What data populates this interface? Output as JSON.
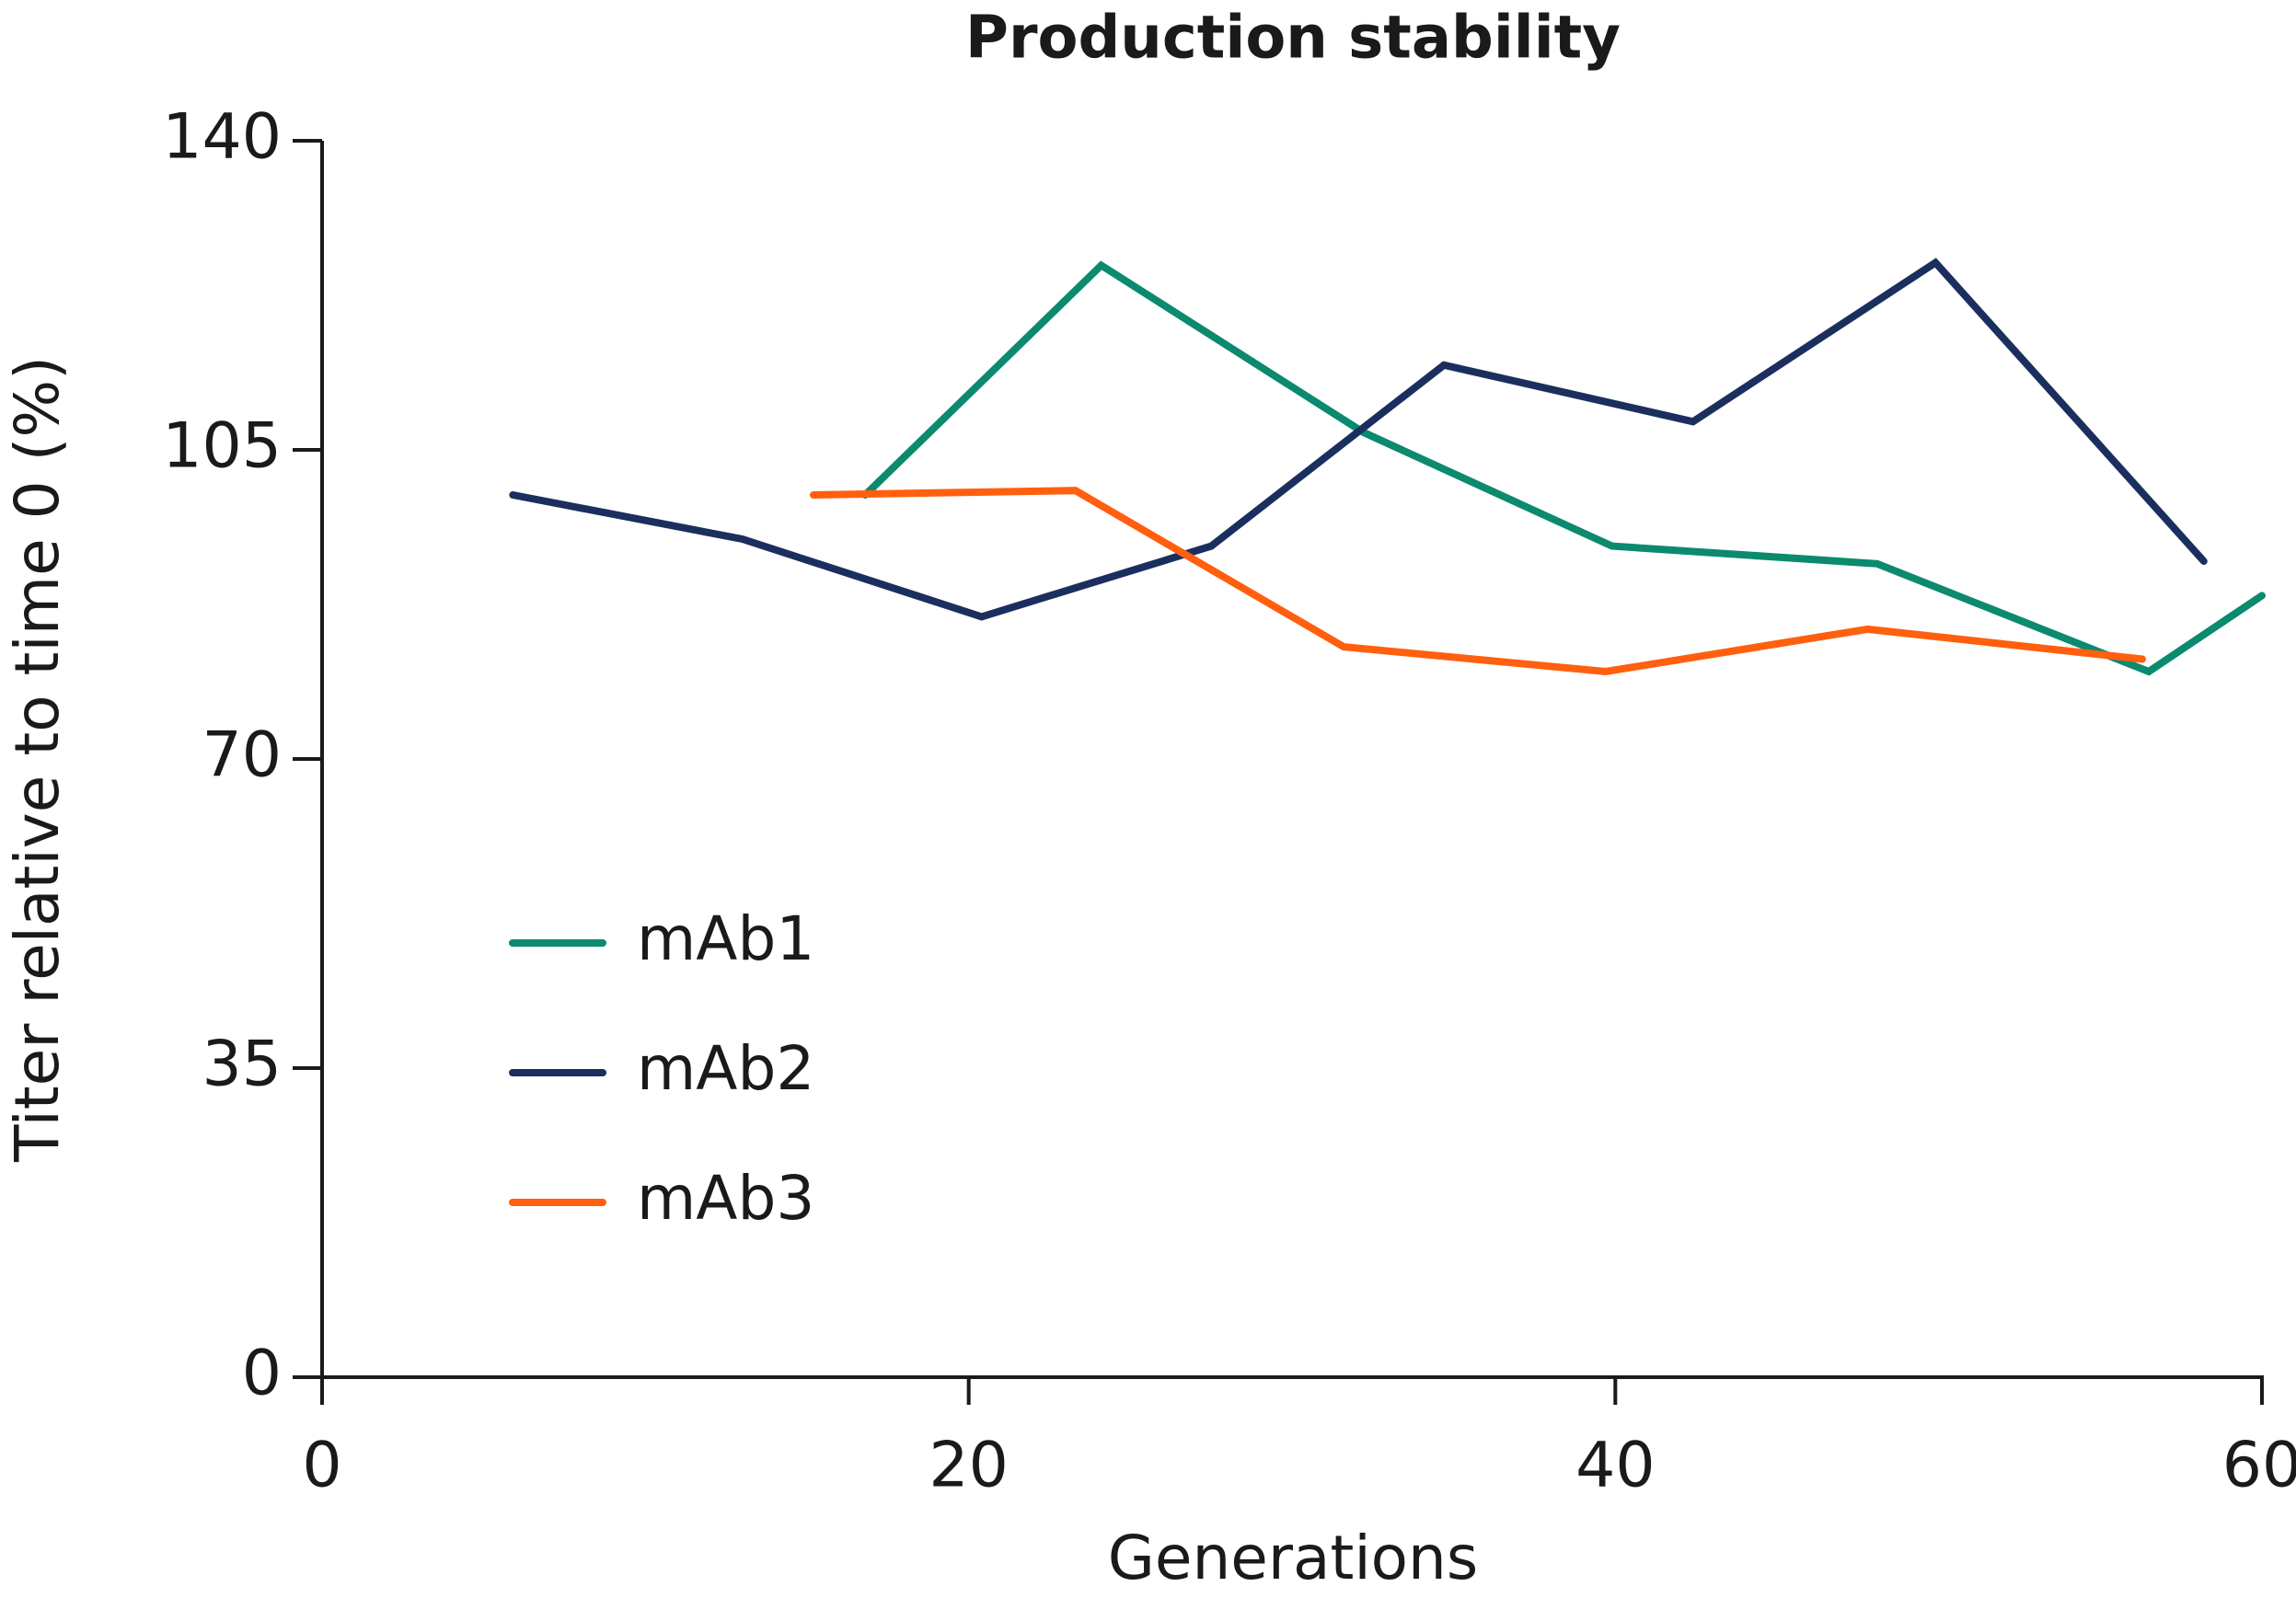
{
  "chart_data": {
    "type": "line",
    "title": "Production stability",
    "x_label": "Generations",
    "y_label": "Titer relative to time 0 (%)",
    "xlim": [
      0,
      60
    ],
    "xticks": [
      0,
      20,
      40,
      60
    ],
    "ylim": [
      0,
      140
    ],
    "yticks": [
      0,
      35,
      70,
      105,
      140
    ],
    "grid": false,
    "legend": "lower left",
    "series": [
      {
        "name": "mAb1",
        "color": "#0b8a6e",
        "x": [
          16.8,
          24.1,
          32.2,
          39.9,
          48.1,
          56.5,
          60
        ],
        "values": [
          99.9,
          125.9,
          107,
          94.1,
          92.1,
          79.9,
          88.5
        ]
      },
      {
        "name": "mAb2",
        "color": "#1b2f5e",
        "x": [
          5.9,
          13.0,
          20.4,
          27.5,
          34.7,
          42.4,
          49.9,
          58.2
        ],
        "values": [
          99.9,
          94.9,
          86.1,
          94.1,
          114.6,
          108.2,
          126.2,
          92.4
        ]
      },
      {
        "name": "mAb3",
        "color": "#ff5f0f",
        "x": [
          15.2,
          23.3,
          31.6,
          39.7,
          47.8,
          56.3
        ],
        "values": [
          99.9,
          100.4,
          82.7,
          79.9,
          84.7,
          81.3
        ]
      }
    ]
  }
}
